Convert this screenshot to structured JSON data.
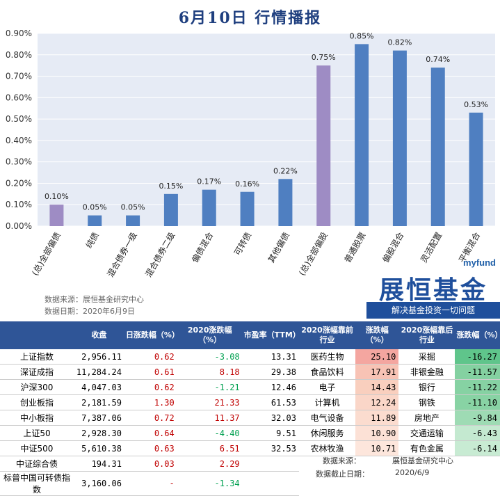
{
  "title": "6月10日 行情播报",
  "source_line": "数据来源：展恒基金研究中心",
  "date_line": "数据日期：2020年6月9日",
  "logo": {
    "brand": "myfund",
    "name": "展恒基金",
    "slogan": "解决基金投资一切问题"
  },
  "chart_data": {
    "type": "bar",
    "ylim": [
      0,
      0.9
    ],
    "yticks": [
      "0.00%",
      "0.10%",
      "0.20%",
      "0.30%",
      "0.40%",
      "0.50%",
      "0.60%",
      "0.70%",
      "0.80%",
      "0.90%"
    ],
    "categories": [
      "(总)全部偏债",
      "纯债",
      "混合债券一级",
      "混合债券二级",
      "偏债混合",
      "可转债",
      "其他偏债",
      "(总)全部偏股",
      "普通股票",
      "偏股混合",
      "灵活配置",
      "平衡混合"
    ],
    "values": [
      0.1,
      0.05,
      0.05,
      0.15,
      0.17,
      0.16,
      0.22,
      0.75,
      0.85,
      0.82,
      0.74,
      0.53
    ],
    "labels": [
      "0.10%",
      "0.05%",
      "0.05%",
      "0.15%",
      "0.17%",
      "0.16%",
      "0.22%",
      "0.75%",
      "0.85%",
      "0.82%",
      "0.74%",
      "0.53%"
    ],
    "colors": [
      "#9e8cc4",
      "#4f7fc1",
      "#4f7fc1",
      "#4f7fc1",
      "#4f7fc1",
      "#4f7fc1",
      "#4f7fc1",
      "#9e8cc4",
      "#4f7fc1",
      "#4f7fc1",
      "#4f7fc1",
      "#4f7fc1"
    ]
  },
  "left_table": {
    "headers": [
      "",
      "收盘",
      "日涨跌幅（%）",
      "2020涨跌幅（%）",
      "市盈率（TTM）"
    ],
    "rows": [
      [
        "上证指数",
        "2,956.11",
        "0.62",
        "-3.08",
        "13.31"
      ],
      [
        "深证成指",
        "11,284.24",
        "0.61",
        "8.18",
        "29.38"
      ],
      [
        "沪深300",
        "4,047.03",
        "0.62",
        "-1.21",
        "12.46"
      ],
      [
        "创业板指",
        "2,181.59",
        "1.30",
        "21.33",
        "61.53"
      ],
      [
        "中小板指",
        "7,387.06",
        "0.72",
        "11.37",
        "32.03"
      ],
      [
        "上证50",
        "2,928.30",
        "0.64",
        "-4.40",
        "9.51"
      ],
      [
        "中证500",
        "5,610.38",
        "0.63",
        "6.51",
        "32.53"
      ],
      [
        "中证综合债",
        "194.31",
        "0.03",
        "2.29",
        ""
      ],
      [
        "标普中国可转债指数",
        "3,160.06",
        "-",
        "-1.34",
        ""
      ]
    ]
  },
  "right_table": {
    "headers": [
      "2020涨幅靠前行业",
      "涨跌幅（%）",
      "2020涨幅靠后行业",
      "涨跌幅（%）"
    ],
    "rows": [
      [
        "医药生物",
        "25.10",
        "采掘",
        "-16.27"
      ],
      [
        "食品饮料",
        "17.91",
        "非银金融",
        "-11.57"
      ],
      [
        "电子",
        "14.43",
        "银行",
        "-11.22"
      ],
      [
        "计算机",
        "12.24",
        "钢铁",
        "-11.10"
      ],
      [
        "电气设备",
        "11.89",
        "房地产",
        "-9.84"
      ],
      [
        "休闲服务",
        "10.90",
        "交通运输",
        "-6.43"
      ],
      [
        "农林牧渔",
        "10.71",
        "有色金属",
        "-6.14"
      ]
    ]
  },
  "footer": {
    "source": "数据来源：",
    "source_val": "展恒基金研究中心",
    "date": "数据截止日期：",
    "date_val": "2020/6/9"
  },
  "up_colors": [
    "#f4a6a0",
    "#f8c3b5",
    "#f9cfbe",
    "#fad6c8",
    "#fbdccf",
    "#fce1d6",
    "#fde6dc"
  ],
  "down_colors": [
    "#5fc58b",
    "#84d1a1",
    "#86d2a3",
    "#88d3a4",
    "#9edbb4",
    "#c4e9d0",
    "#c8ebd3"
  ]
}
